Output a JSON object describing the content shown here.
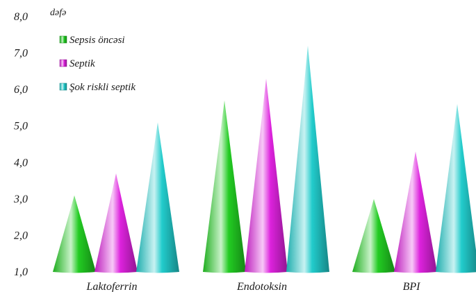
{
  "chart_data": {
    "type": "bar",
    "bar_shape": "cone",
    "ylabel": "dəfə",
    "ylim": [
      1.0,
      8.0
    ],
    "yticks": [
      1.0,
      2.0,
      3.0,
      4.0,
      5.0,
      6.0,
      7.0,
      8.0
    ],
    "ytick_labels": [
      "1,0",
      "2,0",
      "3,0",
      "4,0",
      "5,0",
      "6,0",
      "7,0",
      "8,0"
    ],
    "categories": [
      "Laktoferrin",
      "Endotoksin",
      "BPI"
    ],
    "series": [
      {
        "name": "Sepsis öncəsi",
        "color": "#22cc22",
        "values": [
          3.1,
          5.7,
          3.0
        ]
      },
      {
        "name": "Septik",
        "color": "#dd22dd",
        "values": [
          3.7,
          6.3,
          4.3
        ]
      },
      {
        "name": "Şok riskli septik",
        "color": "#22cccc",
        "values": [
          5.1,
          7.2,
          5.6
        ]
      }
    ],
    "legend_position": "top-left",
    "grid": false
  }
}
